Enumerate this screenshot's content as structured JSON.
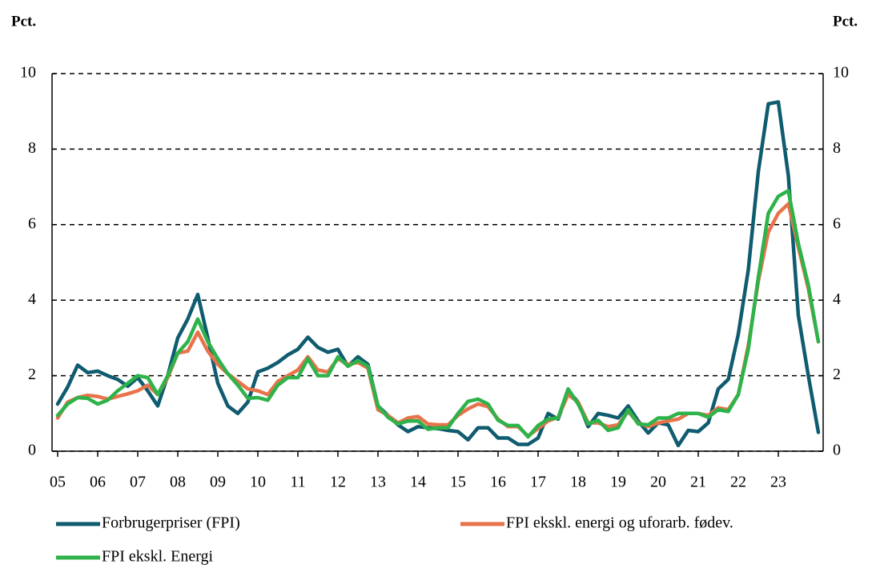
{
  "chart_data": {
    "type": "line",
    "ylabel": "Pct.",
    "y2label": "Pct.",
    "categories": [
      "05",
      null,
      null,
      null,
      "06",
      null,
      null,
      null,
      "07",
      null,
      null,
      null,
      "08",
      null,
      null,
      null,
      "09",
      null,
      null,
      null,
      "10",
      null,
      null,
      null,
      "11",
      null,
      null,
      null,
      "12",
      null,
      null,
      null,
      "13",
      null,
      null,
      null,
      "14",
      null,
      null,
      null,
      "15",
      null,
      null,
      null,
      "16",
      null,
      null,
      null,
      "17",
      null,
      null,
      null,
      "18",
      null,
      null,
      null,
      "19",
      null,
      null,
      null,
      "20",
      null,
      null,
      null,
      "21",
      null,
      null,
      null,
      "22",
      null,
      null,
      null,
      "23",
      null,
      null,
      null,
      null
    ],
    "ylim": [
      0,
      10
    ],
    "yticks": [
      0,
      2,
      4,
      6,
      8,
      10
    ],
    "y2lim": [
      0,
      10
    ],
    "y2ticks": [
      0,
      2,
      4,
      6,
      8,
      10
    ],
    "grid": true,
    "series": [
      {
        "name": "Forbrugerpriser (FPI)",
        "color": "#0f5b6f",
        "values": [
          1.25,
          1.7,
          2.28,
          2.08,
          2.12,
          2.0,
          1.9,
          1.72,
          1.95,
          1.6,
          1.2,
          2.0,
          3.0,
          3.5,
          4.15,
          3.0,
          1.8,
          1.2,
          1.0,
          1.3,
          2.1,
          2.2,
          2.35,
          2.55,
          2.7,
          3.02,
          2.75,
          2.62,
          2.7,
          2.25,
          2.5,
          2.3,
          1.2,
          0.95,
          0.7,
          0.52,
          0.65,
          0.62,
          0.6,
          0.55,
          0.52,
          0.3,
          0.62,
          0.62,
          0.35,
          0.35,
          0.18,
          0.18,
          0.35,
          1.0,
          0.85,
          1.6,
          1.3,
          0.65,
          1.0,
          0.95,
          0.88,
          1.2,
          0.8,
          0.48,
          0.75,
          0.7,
          0.15,
          0.55,
          0.52,
          0.75,
          1.65,
          1.9,
          3.1,
          4.8,
          7.4,
          9.2,
          9.25,
          7.3,
          3.6,
          2.0,
          0.5
        ]
      },
      {
        "name": "FPI ekskl. energi og uforarb. fødev.",
        "color": "#e8734a",
        "values": [
          0.88,
          1.3,
          1.42,
          1.48,
          1.45,
          1.38,
          1.45,
          1.52,
          1.6,
          1.75,
          1.5,
          1.95,
          2.6,
          2.65,
          3.15,
          2.65,
          2.3,
          2.05,
          1.85,
          1.65,
          1.6,
          1.5,
          1.85,
          2.0,
          2.15,
          2.5,
          2.15,
          2.1,
          2.45,
          2.3,
          2.35,
          2.2,
          1.1,
          0.95,
          0.75,
          0.88,
          0.92,
          0.72,
          0.7,
          0.7,
          0.95,
          1.12,
          1.25,
          1.18,
          0.85,
          0.65,
          0.65,
          0.4,
          0.6,
          0.8,
          0.9,
          1.5,
          1.3,
          0.75,
          0.75,
          0.65,
          0.7,
          1.05,
          0.75,
          0.65,
          0.75,
          0.8,
          0.85,
          1.0,
          1.0,
          0.95,
          1.15,
          1.1,
          1.5,
          2.8,
          4.5,
          5.8,
          6.3,
          6.55,
          5.4,
          4.3,
          2.9
        ]
      },
      {
        "name": "FPI ekskl. Energi",
        "color": "#2db34a",
        "values": [
          0.95,
          1.25,
          1.42,
          1.4,
          1.25,
          1.35,
          1.6,
          1.8,
          2.0,
          1.95,
          1.5,
          2.0,
          2.6,
          2.9,
          3.5,
          2.9,
          2.45,
          2.05,
          1.75,
          1.4,
          1.42,
          1.35,
          1.75,
          1.95,
          1.95,
          2.45,
          2.0,
          2.0,
          2.5,
          2.25,
          2.4,
          2.25,
          1.2,
          0.9,
          0.72,
          0.8,
          0.8,
          0.58,
          0.62,
          0.62,
          1.0,
          1.32,
          1.38,
          1.25,
          0.82,
          0.68,
          0.68,
          0.38,
          0.68,
          0.85,
          0.88,
          1.65,
          1.25,
          0.72,
          0.82,
          0.55,
          0.62,
          1.1,
          0.72,
          0.7,
          0.88,
          0.88,
          1.0,
          1.0,
          1.0,
          0.9,
          1.1,
          1.05,
          1.5,
          2.7,
          4.6,
          6.3,
          6.75,
          6.9,
          5.5,
          4.4,
          2.9
        ]
      }
    ]
  }
}
